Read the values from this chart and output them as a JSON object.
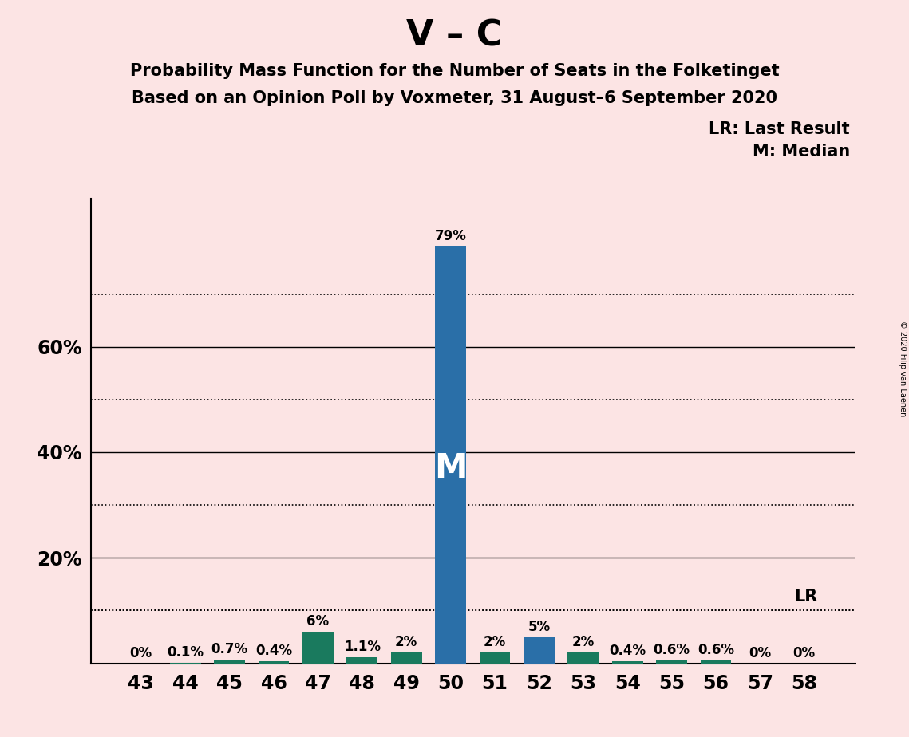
{
  "title": "V – C",
  "subtitle1": "Probability Mass Function for the Number of Seats in the Folketinget",
  "subtitle2": "Based on an Opinion Poll by Voxmeter, 31 August–6 September 2020",
  "copyright": "© 2020 Filip van Laenen",
  "seats": [
    43,
    44,
    45,
    46,
    47,
    48,
    49,
    50,
    51,
    52,
    53,
    54,
    55,
    56,
    57,
    58
  ],
  "probabilities": [
    0.0,
    0.001,
    0.007,
    0.004,
    0.06,
    0.011,
    0.02,
    0.79,
    0.02,
    0.05,
    0.02,
    0.004,
    0.006,
    0.006,
    0.0,
    0.0
  ],
  "labels": [
    "0%",
    "0.1%",
    "0.7%",
    "0.4%",
    "6%",
    "1.1%",
    "2%",
    "79%",
    "2%",
    "5%",
    "2%",
    "0.4%",
    "0.6%",
    "0.6%",
    "0%",
    "0%"
  ],
  "bar_colors": [
    "#1a7a5e",
    "#1a7a5e",
    "#1a7a5e",
    "#1a7a5e",
    "#1a7a5e",
    "#1a7a5e",
    "#1a7a5e",
    "#2a6fa8",
    "#1a7a5e",
    "#2a6fa8",
    "#1a7a5e",
    "#1a7a5e",
    "#1a7a5e",
    "#1a7a5e",
    "#1a7a5e",
    "#1a7a5e"
  ],
  "median_seat": 50,
  "lr_value": 0.1,
  "background_color": "#fce4e4",
  "ylim": [
    0,
    0.88
  ],
  "solid_yticks": [
    0.2,
    0.4,
    0.6
  ],
  "solid_ytick_labels": [
    "20%",
    "40%",
    "60%"
  ],
  "dotted_yticks": [
    0.1,
    0.3,
    0.5,
    0.7
  ],
  "legend_text1": "LR: Last Result",
  "legend_text2": "M: Median",
  "title_fontsize": 32,
  "subtitle_fontsize": 15,
  "ytick_fontsize": 17,
  "xtick_fontsize": 17,
  "bar_label_fontsize": 12,
  "m_label_fontsize": 30
}
